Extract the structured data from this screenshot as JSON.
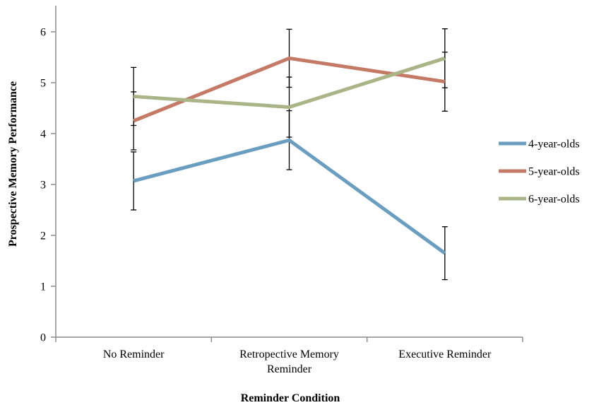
{
  "chart_data": {
    "type": "line",
    "title": "",
    "xlabel": "Reminder Condition",
    "ylabel": "Prospective Memory Performance",
    "ylim": [
      0,
      6
    ],
    "yticks": [
      "0",
      "1",
      "2",
      "3",
      "4",
      "5",
      "6"
    ],
    "categories": [
      [
        "No Reminder"
      ],
      [
        "Retropective Memory",
        "Reminder"
      ],
      [
        "Executive Reminder"
      ]
    ],
    "grid": false,
    "legend_position": "right",
    "series": [
      {
        "name": "4-year-olds",
        "color": "#6a9ec0",
        "values": [
          3.07,
          3.87,
          1.65
        ],
        "error": [
          0.57,
          0.58,
          0.52
        ]
      },
      {
        "name": "5-year-olds",
        "color": "#c47a65",
        "values": [
          4.25,
          5.48,
          5.02
        ],
        "error": [
          0.57,
          0.57,
          0.58
        ]
      },
      {
        "name": "6-year-olds",
        "color": "#a9b487",
        "values": [
          4.73,
          4.52,
          5.48
        ],
        "error": [
          0.57,
          0.59,
          0.58
        ]
      }
    ]
  }
}
